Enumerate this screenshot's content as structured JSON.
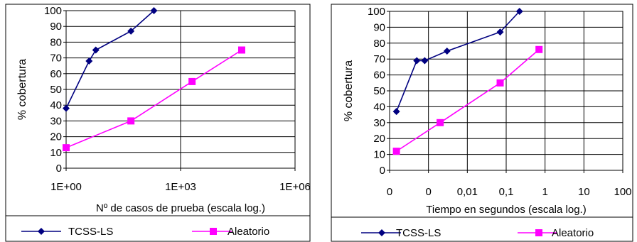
{
  "colors": {
    "tcss": "#000080",
    "aleatorio": "#ff00ff",
    "grid": "#000000",
    "background": "#ffffff"
  },
  "chart_data": [
    {
      "type": "line",
      "xscale": "log",
      "xlabel": "Nº de casos de prueba (escala log.)",
      "ylabel": "% cobertura",
      "xlim": [
        1,
        1000000
      ],
      "ylim": [
        0,
        100
      ],
      "xticks": [
        "1E+00",
        "1E+03",
        "1E+06"
      ],
      "yticks": [
        "0",
        "10",
        "20",
        "30",
        "40",
        "50",
        "60",
        "70",
        "80",
        "90",
        "100"
      ],
      "grid": true,
      "legend_position": "bottom",
      "series": [
        {
          "name": "TCSS-LS",
          "marker": "diamond",
          "color": "#000080",
          "x": [
            1,
            4,
            6,
            50,
            200
          ],
          "y": [
            38,
            68,
            75,
            87,
            100
          ]
        },
        {
          "name": "Aleatorio",
          "marker": "square",
          "color": "#ff00ff",
          "x": [
            1,
            50,
            2000,
            40000
          ],
          "y": [
            13,
            30,
            55,
            75
          ]
        }
      ]
    },
    {
      "type": "line",
      "xscale": "log",
      "xlabel": "Tiempo en segundos (escala log.)",
      "ylabel": "% cobertura",
      "xlim": [
        0.0001,
        100
      ],
      "ylim": [
        0,
        100
      ],
      "xticks": [
        "0",
        "0",
        "0,01",
        "0,1",
        "1",
        "10",
        "100"
      ],
      "yticks": [
        "0",
        "10",
        "20",
        "30",
        "40",
        "50",
        "60",
        "70",
        "80",
        "90",
        "100"
      ],
      "grid": true,
      "legend_position": "bottom",
      "series": [
        {
          "name": "TCSS-LS",
          "marker": "diamond",
          "color": "#000080",
          "x": [
            0.00015,
            0.0005,
            0.0008,
            0.003,
            0.07,
            0.22
          ],
          "y": [
            37,
            69,
            69,
            75,
            87,
            100
          ]
        },
        {
          "name": "Aleatorio",
          "marker": "square",
          "color": "#ff00ff",
          "x": [
            0.00015,
            0.002,
            0.07,
            0.7
          ],
          "y": [
            12,
            30,
            55,
            76
          ]
        }
      ]
    }
  ]
}
